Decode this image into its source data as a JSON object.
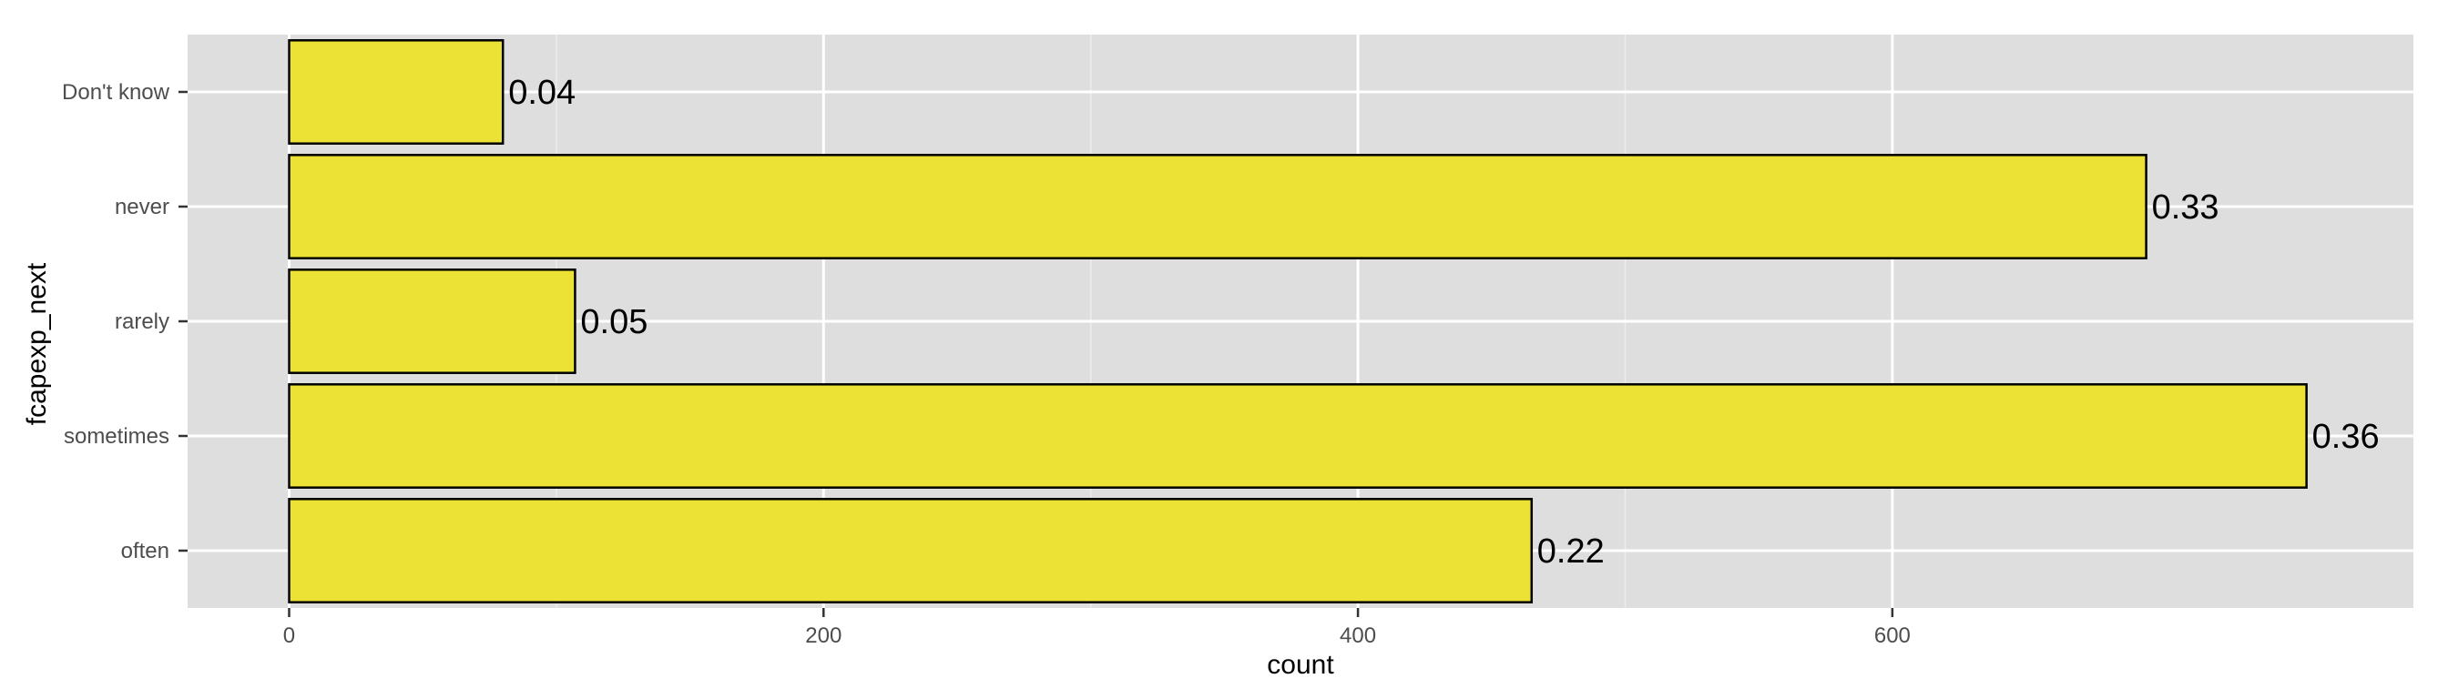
{
  "chart_data": {
    "type": "bar",
    "orientation": "horizontal",
    "categories": [
      "Don't know",
      "never",
      "rarely",
      "sometimes",
      "often"
    ],
    "values": [
      80,
      695,
      107,
      755,
      465
    ],
    "data_labels": [
      "0.04",
      "0.33",
      "0.05",
      "0.36",
      "0.22"
    ],
    "title": "",
    "xlabel": "count",
    "ylabel": "fcapexp_next",
    "xlim": [
      -38,
      795
    ],
    "x_ticks": [
      0,
      200,
      400,
      600
    ],
    "x_tick_labels": [
      "0",
      "200",
      "400",
      "600"
    ],
    "grid": true,
    "legend": "none"
  },
  "colors": {
    "bar_fill": "#ebe235",
    "bar_stroke": "#000000",
    "panel_background": "#dedede",
    "grid_major": "#ffffff",
    "grid_minor": "#ececec",
    "tick_label": "#4d4d4d",
    "axis_title": "#000000"
  }
}
